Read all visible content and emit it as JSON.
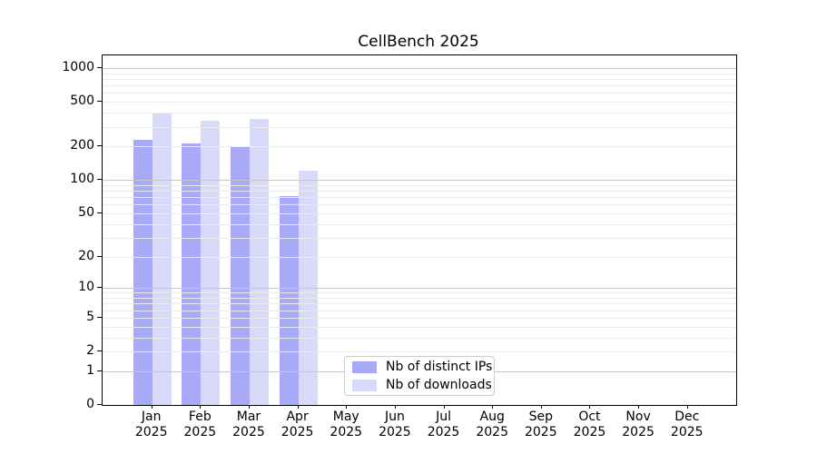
{
  "figure": {
    "title": "CellBench 2025"
  },
  "legend": {
    "items": [
      {
        "label": "Nb of distinct IPs",
        "color": "#a9a9f9"
      },
      {
        "label": "Nb of downloads",
        "color": "#d9d9f9"
      }
    ]
  },
  "chart_data": {
    "type": "bar",
    "title": "CellBench 2025",
    "categories": [
      "Jan 2025",
      "Feb 2025",
      "Mar 2025",
      "Apr 2025",
      "May 2025",
      "Jun 2025",
      "Jul 2025",
      "Aug 2025",
      "Sep 2025",
      "Oct 2025",
      "Nov 2025",
      "Dec 2025"
    ],
    "series": [
      {
        "name": "Nb of distinct IPs",
        "color": "#a9a9f9",
        "values": [
          230,
          212,
          197,
          72,
          0,
          0,
          0,
          0,
          0,
          0,
          0,
          0
        ]
      },
      {
        "name": "Nb of downloads",
        "color": "#d9d9f9",
        "values": [
          394,
          339,
          350,
          120,
          0,
          0,
          0,
          0,
          0,
          0,
          0,
          0
        ]
      }
    ],
    "xlabel": "",
    "ylabel": "",
    "y_scale": "log10(1+x)",
    "ylim": [
      0,
      1300
    ],
    "y_ticks": [
      0,
      1,
      2,
      5,
      10,
      20,
      50,
      100,
      200,
      500,
      1000
    ],
    "grid_major": [
      1,
      10,
      100,
      1000
    ],
    "grid_minor": [
      2,
      3,
      4,
      5,
      6,
      7,
      8,
      9,
      20,
      30,
      40,
      50,
      60,
      70,
      80,
      90,
      200,
      300,
      400,
      500,
      600,
      700,
      800,
      900
    ],
    "grid": "on",
    "legend_position": "lower-center-inside"
  }
}
